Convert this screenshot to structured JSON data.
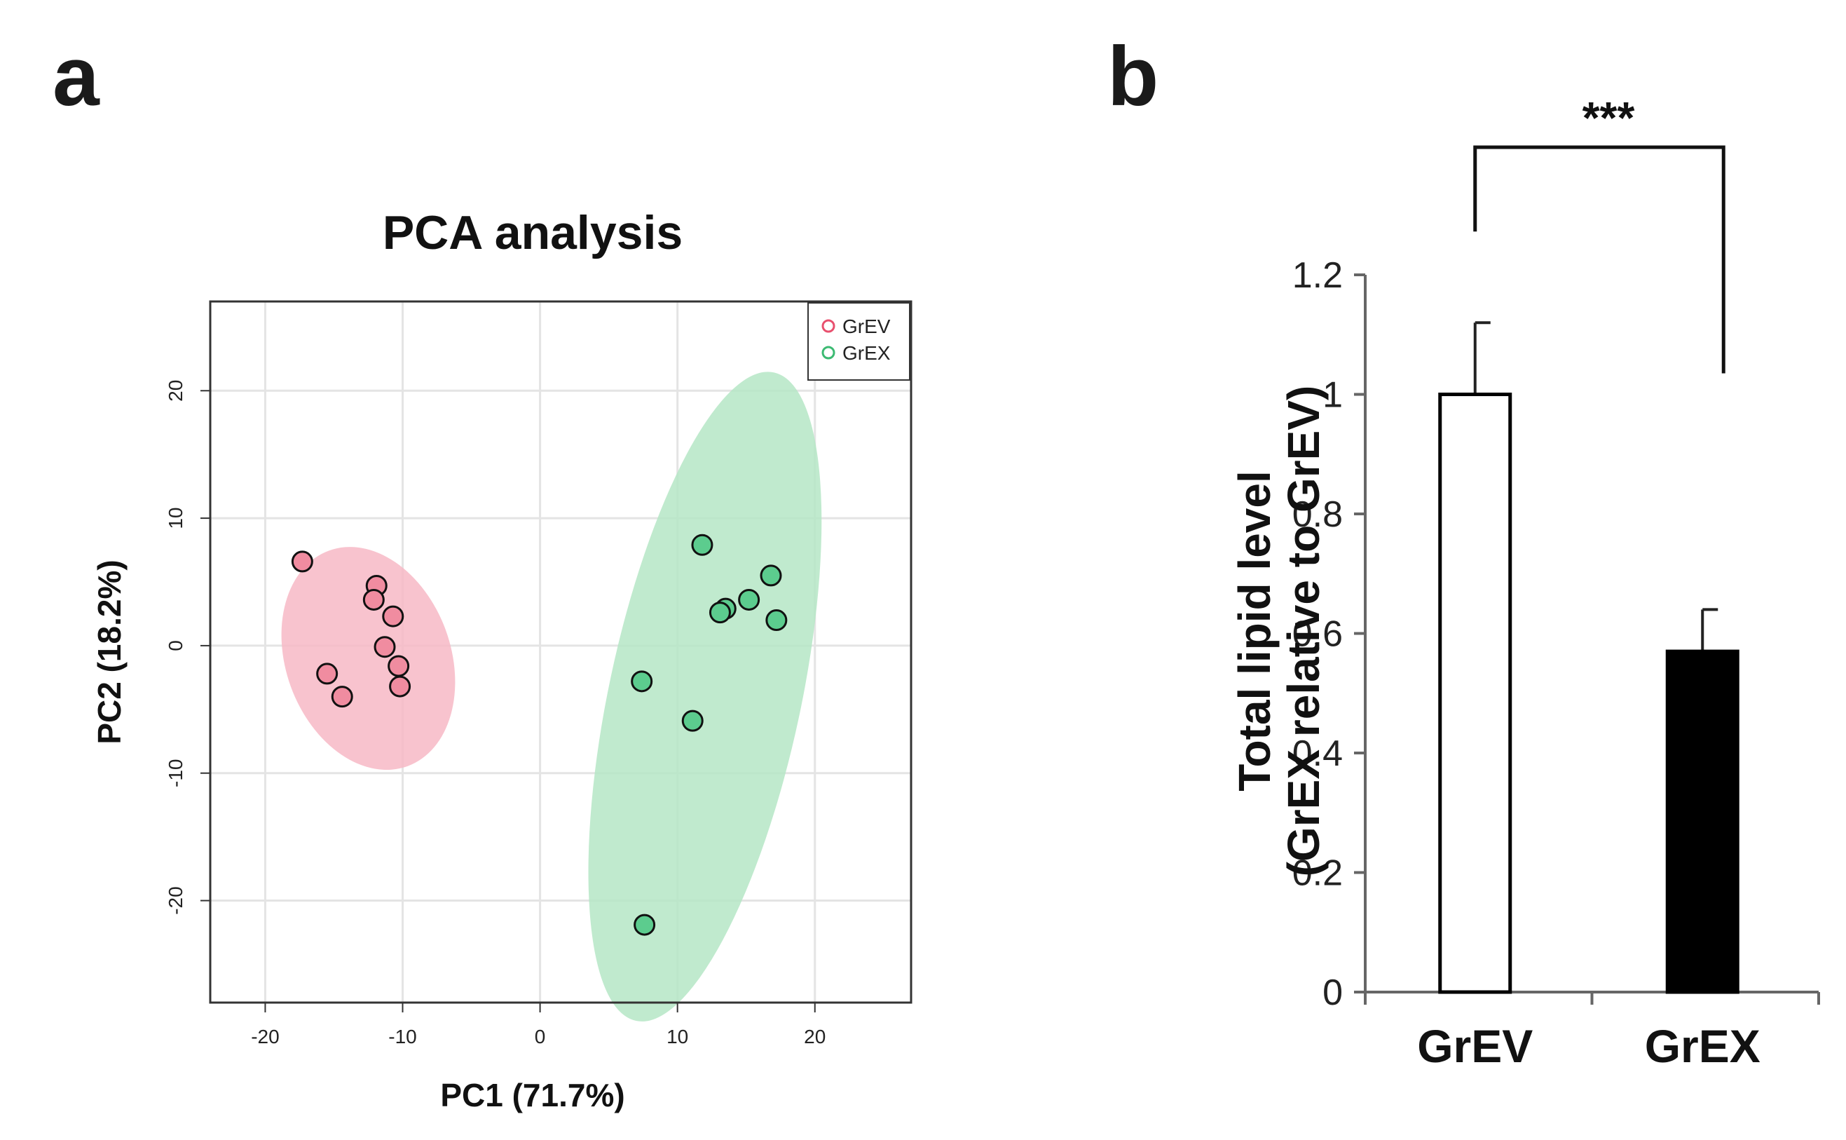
{
  "panels": {
    "a_label": "a",
    "b_label": "b"
  },
  "colors": {
    "grev_fill": "#f08ca0",
    "grev_ellipse": "#f7b9c6",
    "grex_fill": "#5ccc8e",
    "grex_ellipse": "#b5e6c6",
    "legend_grev": "#e8506e",
    "legend_grex": "#3cba72",
    "bar_grev": "#ffffff",
    "bar_grex": "#000000"
  },
  "chart_data": [
    {
      "type": "scatter",
      "title": "PCA analysis",
      "xlabel": "PC1 (71.7%)",
      "ylabel": "PC2 (18.2%)",
      "xlim": [
        -24,
        27
      ],
      "ylim": [
        -28,
        27
      ],
      "xticks": [
        -20,
        -10,
        0,
        10,
        20
      ],
      "xtick_labels": [
        "-20",
        "-10",
        "0",
        "10",
        "20"
      ],
      "yticks": [
        -20,
        -10,
        0,
        10,
        20
      ],
      "ytick_labels": [
        "-20",
        "-10",
        "0",
        "10",
        "20"
      ],
      "grid": true,
      "legend_position": "top-right",
      "series": [
        {
          "name": "GrEV",
          "points": [
            [
              -17.3,
              6.6
            ],
            [
              -11.9,
              4.7
            ],
            [
              -12.1,
              3.6
            ],
            [
              -10.7,
              2.3
            ],
            [
              -11.3,
              -0.1
            ],
            [
              -10.3,
              -1.6
            ],
            [
              -10.2,
              -3.2
            ],
            [
              -15.5,
              -2.2
            ],
            [
              -14.4,
              -4.0
            ]
          ],
          "ellipse": {
            "cx": -12.5,
            "cy": -1.0,
            "rx": 6.0,
            "ry": 9.0,
            "angle_deg": -20
          }
        },
        {
          "name": "GrEX",
          "points": [
            [
              11.8,
              7.9
            ],
            [
              16.8,
              5.5
            ],
            [
              15.2,
              3.6
            ],
            [
              13.5,
              2.9
            ],
            [
              13.1,
              2.6
            ],
            [
              17.2,
              2.0
            ],
            [
              7.4,
              -2.8
            ],
            [
              11.1,
              -5.9
            ],
            [
              7.6,
              -21.9
            ]
          ],
          "ellipse": {
            "cx": 12.0,
            "cy": -4.0,
            "rx": 7.0,
            "ry": 26.0,
            "angle_deg": 12
          }
        }
      ]
    },
    {
      "type": "bar",
      "categories": [
        "GrEV",
        "GrEX"
      ],
      "values": [
        1.0,
        0.57
      ],
      "errors": [
        0.12,
        0.07
      ],
      "ylabel_line1": "Total lipid level",
      "ylabel_line2": "(GrEX relative to GrEV)",
      "ylim": [
        0,
        1.2
      ],
      "yticks": [
        0,
        0.2,
        0.4,
        0.6,
        0.8,
        1,
        1.2
      ],
      "ytick_labels": [
        "0",
        "0.2",
        "0.4",
        "0.6",
        "0.8",
        "1",
        "1.2"
      ],
      "significance": "***"
    }
  ]
}
